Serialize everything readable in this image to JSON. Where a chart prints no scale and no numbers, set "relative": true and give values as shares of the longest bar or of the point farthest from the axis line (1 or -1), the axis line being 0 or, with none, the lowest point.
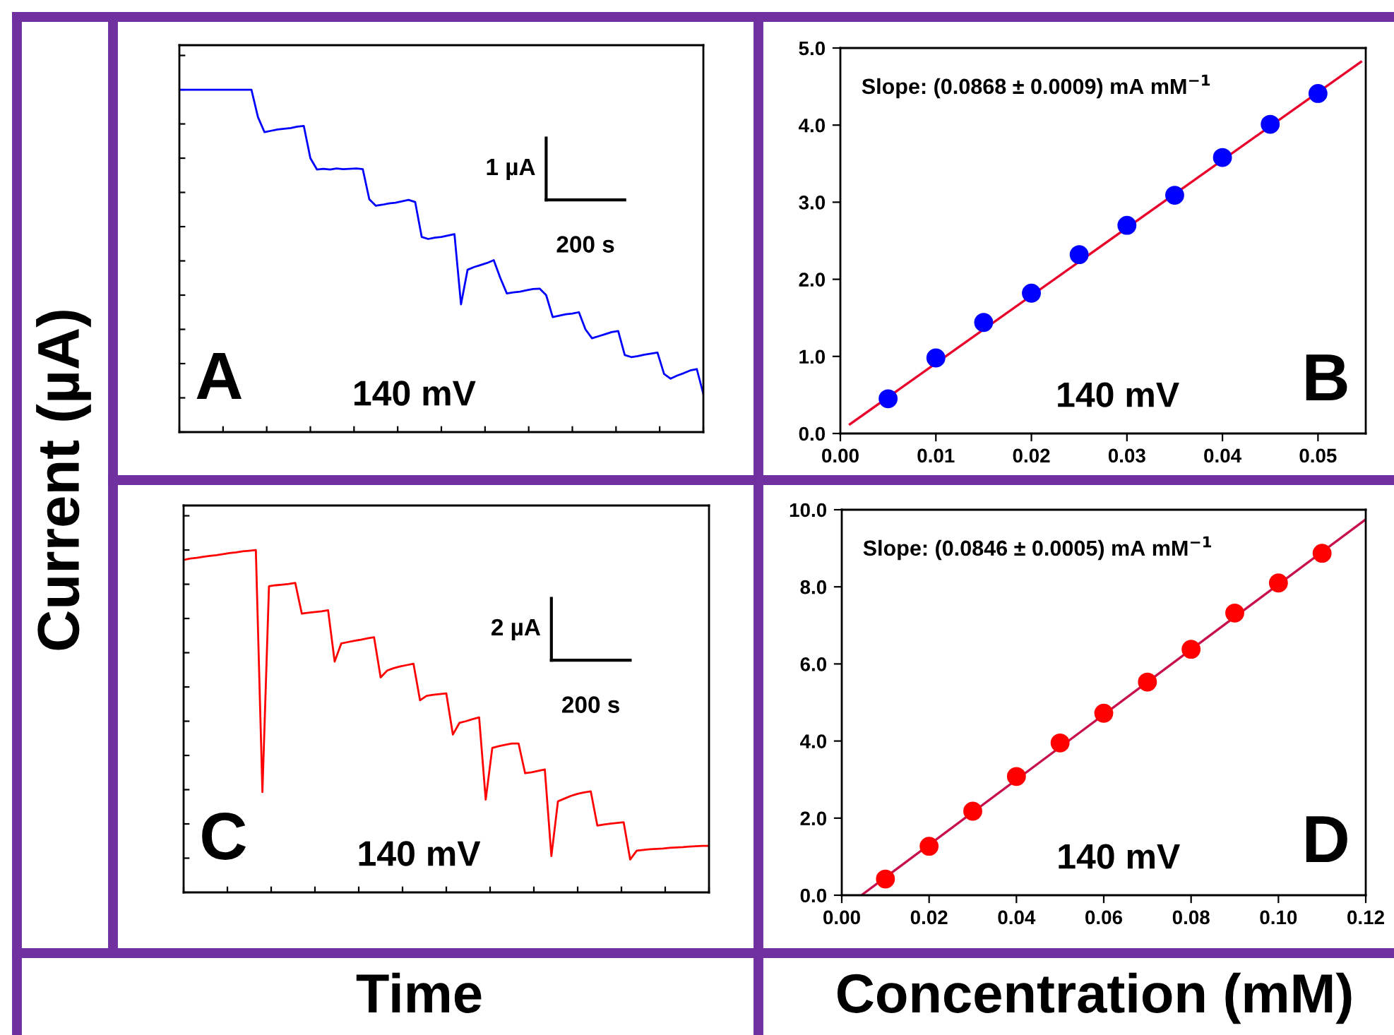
{
  "chart_data": [
    {
      "type": "line",
      "relative": true,
      "ylabel": "Current (µA)",
      "tick_labels": false,
      "grid": false,
      "marker": "none",
      "line_style": "solid",
      "annotations": [
        "1 µA",
        "200 s",
        "A",
        "140 mV"
      ],
      "categories": [
        null,
        null,
        null,
        null,
        null,
        null,
        null,
        null,
        null,
        null,
        null,
        null,
        null,
        null,
        null,
        null,
        null,
        null,
        null,
        null,
        null,
        null,
        null,
        null,
        null,
        null,
        null,
        null,
        null,
        null,
        null,
        null,
        null,
        null,
        null,
        null,
        null,
        null,
        null,
        null,
        null,
        null,
        null,
        null,
        null,
        null,
        null,
        null,
        null,
        null,
        null,
        null,
        null,
        null,
        null,
        null,
        null,
        null,
        null,
        null,
        null,
        null,
        null,
        null,
        null,
        null,
        null,
        null,
        null,
        null,
        null,
        null,
        null,
        null,
        null,
        null,
        null,
        null,
        null,
        null,
        null
      ],
      "series": [
        {
          "color": "#0000ff",
          "values": [
            1.0,
            1.0,
            1.0,
            1.0,
            1.0,
            1.0,
            1.0,
            1.0,
            1.0,
            1.0,
            1.0,
            1.0,
            0.92,
            0.876,
            0.88,
            0.884,
            0.886,
            0.888,
            0.892,
            0.894,
            0.8,
            0.767,
            0.769,
            0.767,
            0.77,
            0.768,
            0.769,
            0.77,
            0.768,
            0.68,
            0.661,
            0.664,
            0.668,
            0.67,
            0.674,
            0.678,
            0.672,
            0.57,
            0.564,
            0.568,
            0.57,
            0.574,
            0.578,
            0.373,
            0.474,
            0.482,
            0.488,
            0.494,
            0.502,
            0.45,
            0.405,
            0.408,
            0.41,
            0.414,
            0.418,
            0.419,
            0.4,
            0.336,
            0.34,
            0.344,
            0.346,
            0.35,
            0.3,
            0.274,
            0.28,
            0.286,
            0.292,
            0.295,
            0.225,
            0.219,
            0.222,
            0.226,
            0.229,
            0.232,
            0.17,
            0.156,
            0.165,
            0.172,
            0.18,
            0.184,
            0.111
          ]
        }
      ]
    },
    {
      "type": "scatter",
      "xlim": [
        0,
        0.055
      ],
      "ylim": [
        0,
        5.0
      ],
      "grid": false,
      "xticks": [
        {
          "value": 0,
          "label": "0.00"
        },
        {
          "value": 0.01,
          "label": "0.01"
        },
        {
          "value": 0.02,
          "label": "0.02"
        },
        {
          "value": 0.03,
          "label": "0.03"
        },
        {
          "value": 0.04,
          "label": "0.04"
        },
        {
          "value": 0.05,
          "label": "0.05"
        }
      ],
      "yticks": [
        {
          "value": 0,
          "label": "0.0"
        },
        {
          "value": 1,
          "label": "1.0"
        },
        {
          "value": 2,
          "label": "2.0"
        },
        {
          "value": 3,
          "label": "3.0"
        },
        {
          "value": 4,
          "label": "4.0"
        },
        {
          "value": 5,
          "label": "5.0"
        }
      ],
      "annotations": [
        "Slope: (0.0868 ± 0.0009) mA mM$^{−1}$",
        "140 mV",
        "B"
      ],
      "series": [
        {
          "type": "line",
          "color": "#e8002a",
          "x": [
            0.001,
            0.0545
          ],
          "values": [
            0.12,
            4.82
          ]
        },
        {
          "type": "scatter",
          "marker": "circle",
          "color": "#0000ff",
          "x": [
            0.005,
            0.01,
            0.015,
            0.02,
            0.025,
            0.03,
            0.035,
            0.04,
            0.045,
            0.05
          ],
          "values": [
            0.45,
            0.98,
            1.44,
            1.82,
            2.32,
            2.7,
            3.09,
            3.58,
            4.01,
            4.41
          ]
        }
      ]
    },
    {
      "type": "line",
      "relative": true,
      "xlabel": "Time",
      "tick_labels": false,
      "grid": false,
      "marker": "none",
      "line_style": "solid",
      "annotations": [
        "2 µA",
        "200 s",
        "C",
        "140 mV"
      ],
      "categories": [
        null,
        null,
        null,
        null,
        null,
        null,
        null,
        null,
        null,
        null,
        null,
        null,
        null,
        null,
        null,
        null,
        null,
        null,
        null,
        null,
        null,
        null,
        null,
        null,
        null,
        null,
        null,
        null,
        null,
        null,
        null,
        null,
        null,
        null,
        null,
        null,
        null,
        null,
        null,
        null,
        null,
        null,
        null,
        null,
        null,
        null,
        null,
        null,
        null,
        null,
        null,
        null,
        null,
        null,
        null,
        null,
        null,
        null,
        null,
        null,
        null,
        null,
        null,
        null,
        null,
        null,
        null,
        null,
        null,
        null,
        null,
        null,
        null,
        null,
        null,
        null,
        null,
        null,
        null,
        null,
        null
      ],
      "series": [
        {
          "color": "#ff0000",
          "values": [
            0.971,
            0.975,
            0.977,
            0.98,
            0.983,
            0.985,
            0.988,
            0.991,
            0.993,
            0.996,
            0.998,
            1.0,
            0.293,
            0.894,
            0.897,
            0.899,
            0.901,
            0.904,
            0.814,
            0.817,
            0.819,
            0.821,
            0.824,
            0.674,
            0.727,
            0.731,
            0.735,
            0.738,
            0.742,
            0.745,
            0.628,
            0.648,
            0.655,
            0.66,
            0.664,
            0.668,
            0.561,
            0.574,
            0.577,
            0.579,
            0.581,
            0.461,
            0.495,
            0.5,
            0.506,
            0.511,
            0.271,
            0.422,
            0.427,
            0.431,
            0.435,
            0.435,
            0.348,
            0.351,
            0.355,
            0.359,
            0.106,
            0.266,
            0.274,
            0.282,
            0.288,
            0.292,
            0.295,
            0.195,
            0.198,
            0.201,
            0.203,
            0.205,
            0.096,
            0.122,
            0.124,
            0.126,
            0.127,
            0.128,
            0.13,
            0.131,
            0.132,
            0.134,
            0.135,
            0.136,
            0.136
          ]
        }
      ]
    },
    {
      "type": "scatter",
      "xlabel": "Concentration (mM)",
      "xlim": [
        0,
        0.12
      ],
      "ylim": [
        0,
        10.0
      ],
      "grid": false,
      "xticks": [
        {
          "value": 0,
          "label": "0.00"
        },
        {
          "value": 0.02,
          "label": "0.02"
        },
        {
          "value": 0.04,
          "label": "0.04"
        },
        {
          "value": 0.06,
          "label": "0.06"
        },
        {
          "value": 0.08,
          "label": "0.08"
        },
        {
          "value": 0.1,
          "label": "0.10"
        },
        {
          "value": 0.12,
          "label": "0.12"
        }
      ],
      "yticks": [
        {
          "value": 0,
          "label": "0.0"
        },
        {
          "value": 2,
          "label": "2.0"
        },
        {
          "value": 4,
          "label": "4.0"
        },
        {
          "value": 6,
          "label": "6.0"
        },
        {
          "value": 8,
          "label": "8.0"
        },
        {
          "value": 10,
          "label": "10.0"
        }
      ],
      "annotations": [
        "Slope: (0.0846 ± 0.0005) mA mM$^{−1}$",
        "140 mV",
        "D"
      ],
      "series": [
        {
          "type": "line",
          "color": "#c8104a",
          "x": [
            0.0045,
            0.12
          ],
          "values": [
            0,
            9.75
          ]
        },
        {
          "type": "scatter",
          "marker": "circle",
          "color": "#ff0000",
          "x": [
            0.01,
            0.02,
            0.03,
            0.04,
            0.05,
            0.06,
            0.07,
            0.08,
            0.09,
            0.1,
            0.11
          ],
          "values": [
            0.42,
            1.27,
            2.18,
            3.08,
            3.95,
            4.72,
            5.53,
            6.38,
            7.32,
            8.1,
            8.87
          ]
        }
      ]
    }
  ]
}
